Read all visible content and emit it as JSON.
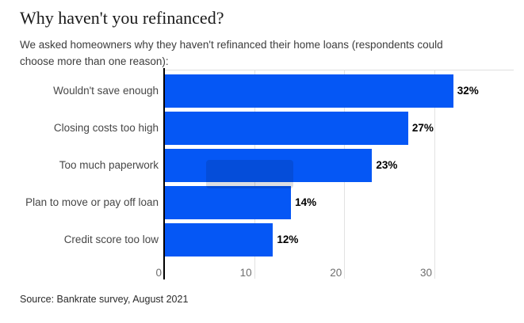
{
  "header": {
    "title": "Why haven't you refinanced?",
    "subtitle_lines": [
      "We asked homeowners why they haven't refinanced their home loans (respondents could",
      "choose more than one reason):"
    ]
  },
  "chart_data": {
    "type": "bar",
    "orientation": "horizontal",
    "categories": [
      "Wouldn't save enough",
      "Closing costs too high",
      "Too much paperwork",
      "Plan to move or pay off loan",
      "Credit score too low"
    ],
    "values": [
      32,
      27,
      23,
      14,
      12
    ],
    "value_labels": [
      "32%",
      "27%",
      "23%",
      "14%",
      "12%"
    ],
    "x_ticks": [
      0,
      10,
      20,
      30
    ],
    "xlim": [
      0,
      38.8
    ],
    "bar_color": "#0557f5",
    "grid": "vertical-light-gray",
    "legend": "none",
    "highlighted_category": "Too much paperwork",
    "highlight_index": 2
  },
  "footer": {
    "source": "Source: Bankrate survey, August 2021"
  }
}
